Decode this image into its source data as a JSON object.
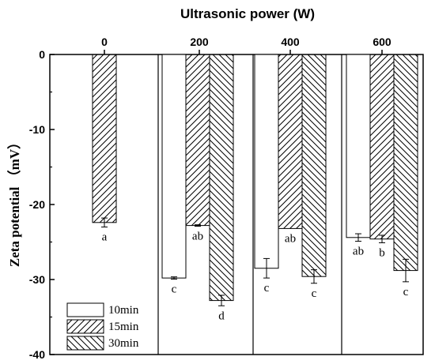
{
  "chart_data": {
    "type": "bar",
    "xlabel": "Ultrasonic power (W)",
    "ylabel": "Zeta potential （mV）",
    "ylim": [
      -40,
      0
    ],
    "yticks": [
      "0",
      "-10",
      "-20",
      "-30",
      "-40"
    ],
    "categories": [
      "0",
      "200",
      "400",
      "600"
    ],
    "series": [
      {
        "name": "10min",
        "pattern": "none",
        "values": [
          null,
          -29.8,
          -28.5,
          -24.4
        ],
        "errors": [
          null,
          0.15,
          1.3,
          0.5
        ]
      },
      {
        "name": "15min",
        "pattern": "hatch-up",
        "values": [
          -22.4,
          -22.8,
          -23.2,
          -24.6
        ],
        "errors": [
          0.6,
          0.1,
          0,
          0.5
        ]
      },
      {
        "name": "30min",
        "pattern": "hatch-down",
        "values": [
          null,
          -32.8,
          -29.6,
          -28.8
        ],
        "errors": [
          null,
          0.7,
          0.9,
          1.5
        ]
      }
    ],
    "annotations": [
      {
        "category": "0",
        "series": "15min",
        "text": "a"
      },
      {
        "category": "200",
        "series": "10min",
        "text": "c"
      },
      {
        "category": "200",
        "series": "15min",
        "text": "ab"
      },
      {
        "category": "200",
        "series": "30min",
        "text": "d"
      },
      {
        "category": "400",
        "series": "10min",
        "text": "c"
      },
      {
        "category": "400",
        "series": "15min",
        "text": "ab"
      },
      {
        "category": "400",
        "series": "30min",
        "text": "c"
      },
      {
        "category": "600",
        "series": "10min",
        "text": "ab"
      },
      {
        "category": "600",
        "series": "15min",
        "text": "b"
      },
      {
        "category": "600",
        "series": "30min",
        "text": "c"
      }
    ],
    "legend_position": "bottom-left",
    "grid": false
  }
}
